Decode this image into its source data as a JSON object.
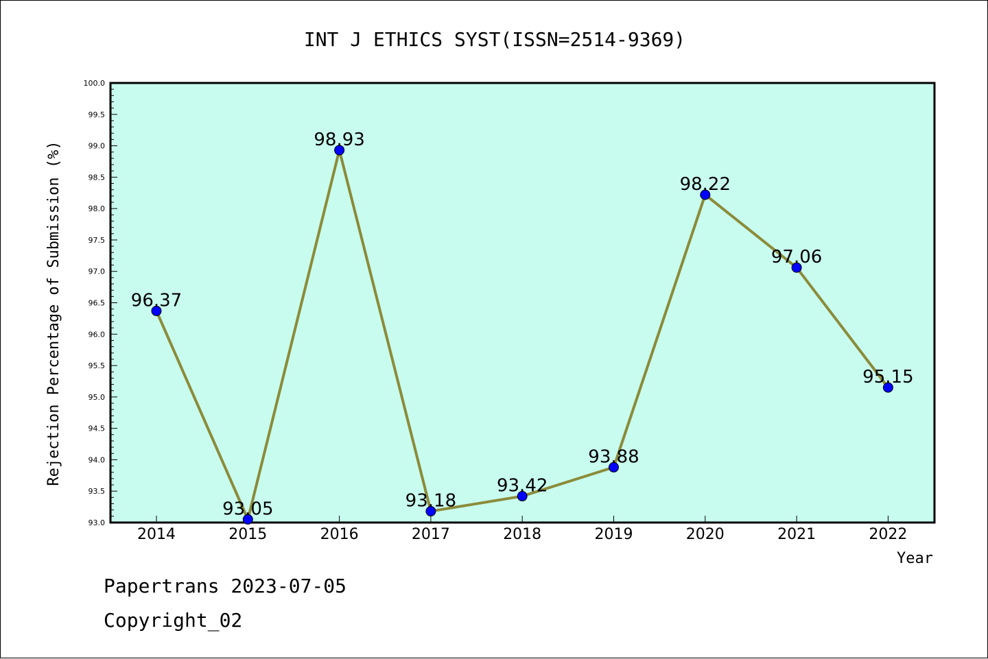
{
  "chart_data": {
    "type": "line",
    "title": "INT J ETHICS SYST(ISSN=2514-9369)",
    "xlabel": "Year",
    "ylabel": "Rejection Percentage of Submission (%)",
    "categories": [
      "2014",
      "2015",
      "2016",
      "2017",
      "2018",
      "2019",
      "2020",
      "2021",
      "2022"
    ],
    "values": [
      96.37,
      93.05,
      98.93,
      93.18,
      93.42,
      93.88,
      98.22,
      97.06,
      95.15
    ],
    "data_labels": [
      "96.37",
      "93.05",
      "98.93",
      "93.18",
      "93.42",
      "93.88",
      "98.22",
      "97.06",
      "95.15"
    ],
    "ylim": [
      93.0,
      100.0
    ],
    "yticks": [
      "93.0",
      "93.5",
      "94.0",
      "94.5",
      "95.0",
      "95.5",
      "96.0",
      "96.5",
      "97.0",
      "97.5",
      "98.0",
      "98.5",
      "99.0",
      "99.5",
      "100.0"
    ],
    "grid": false,
    "colors": {
      "plot_background": "#c8fcee",
      "line": "#8b8b3a",
      "marker": "#0000ff"
    }
  },
  "footer": {
    "line1": "Papertrans 2023-07-05",
    "line2": "Copyright_02"
  }
}
